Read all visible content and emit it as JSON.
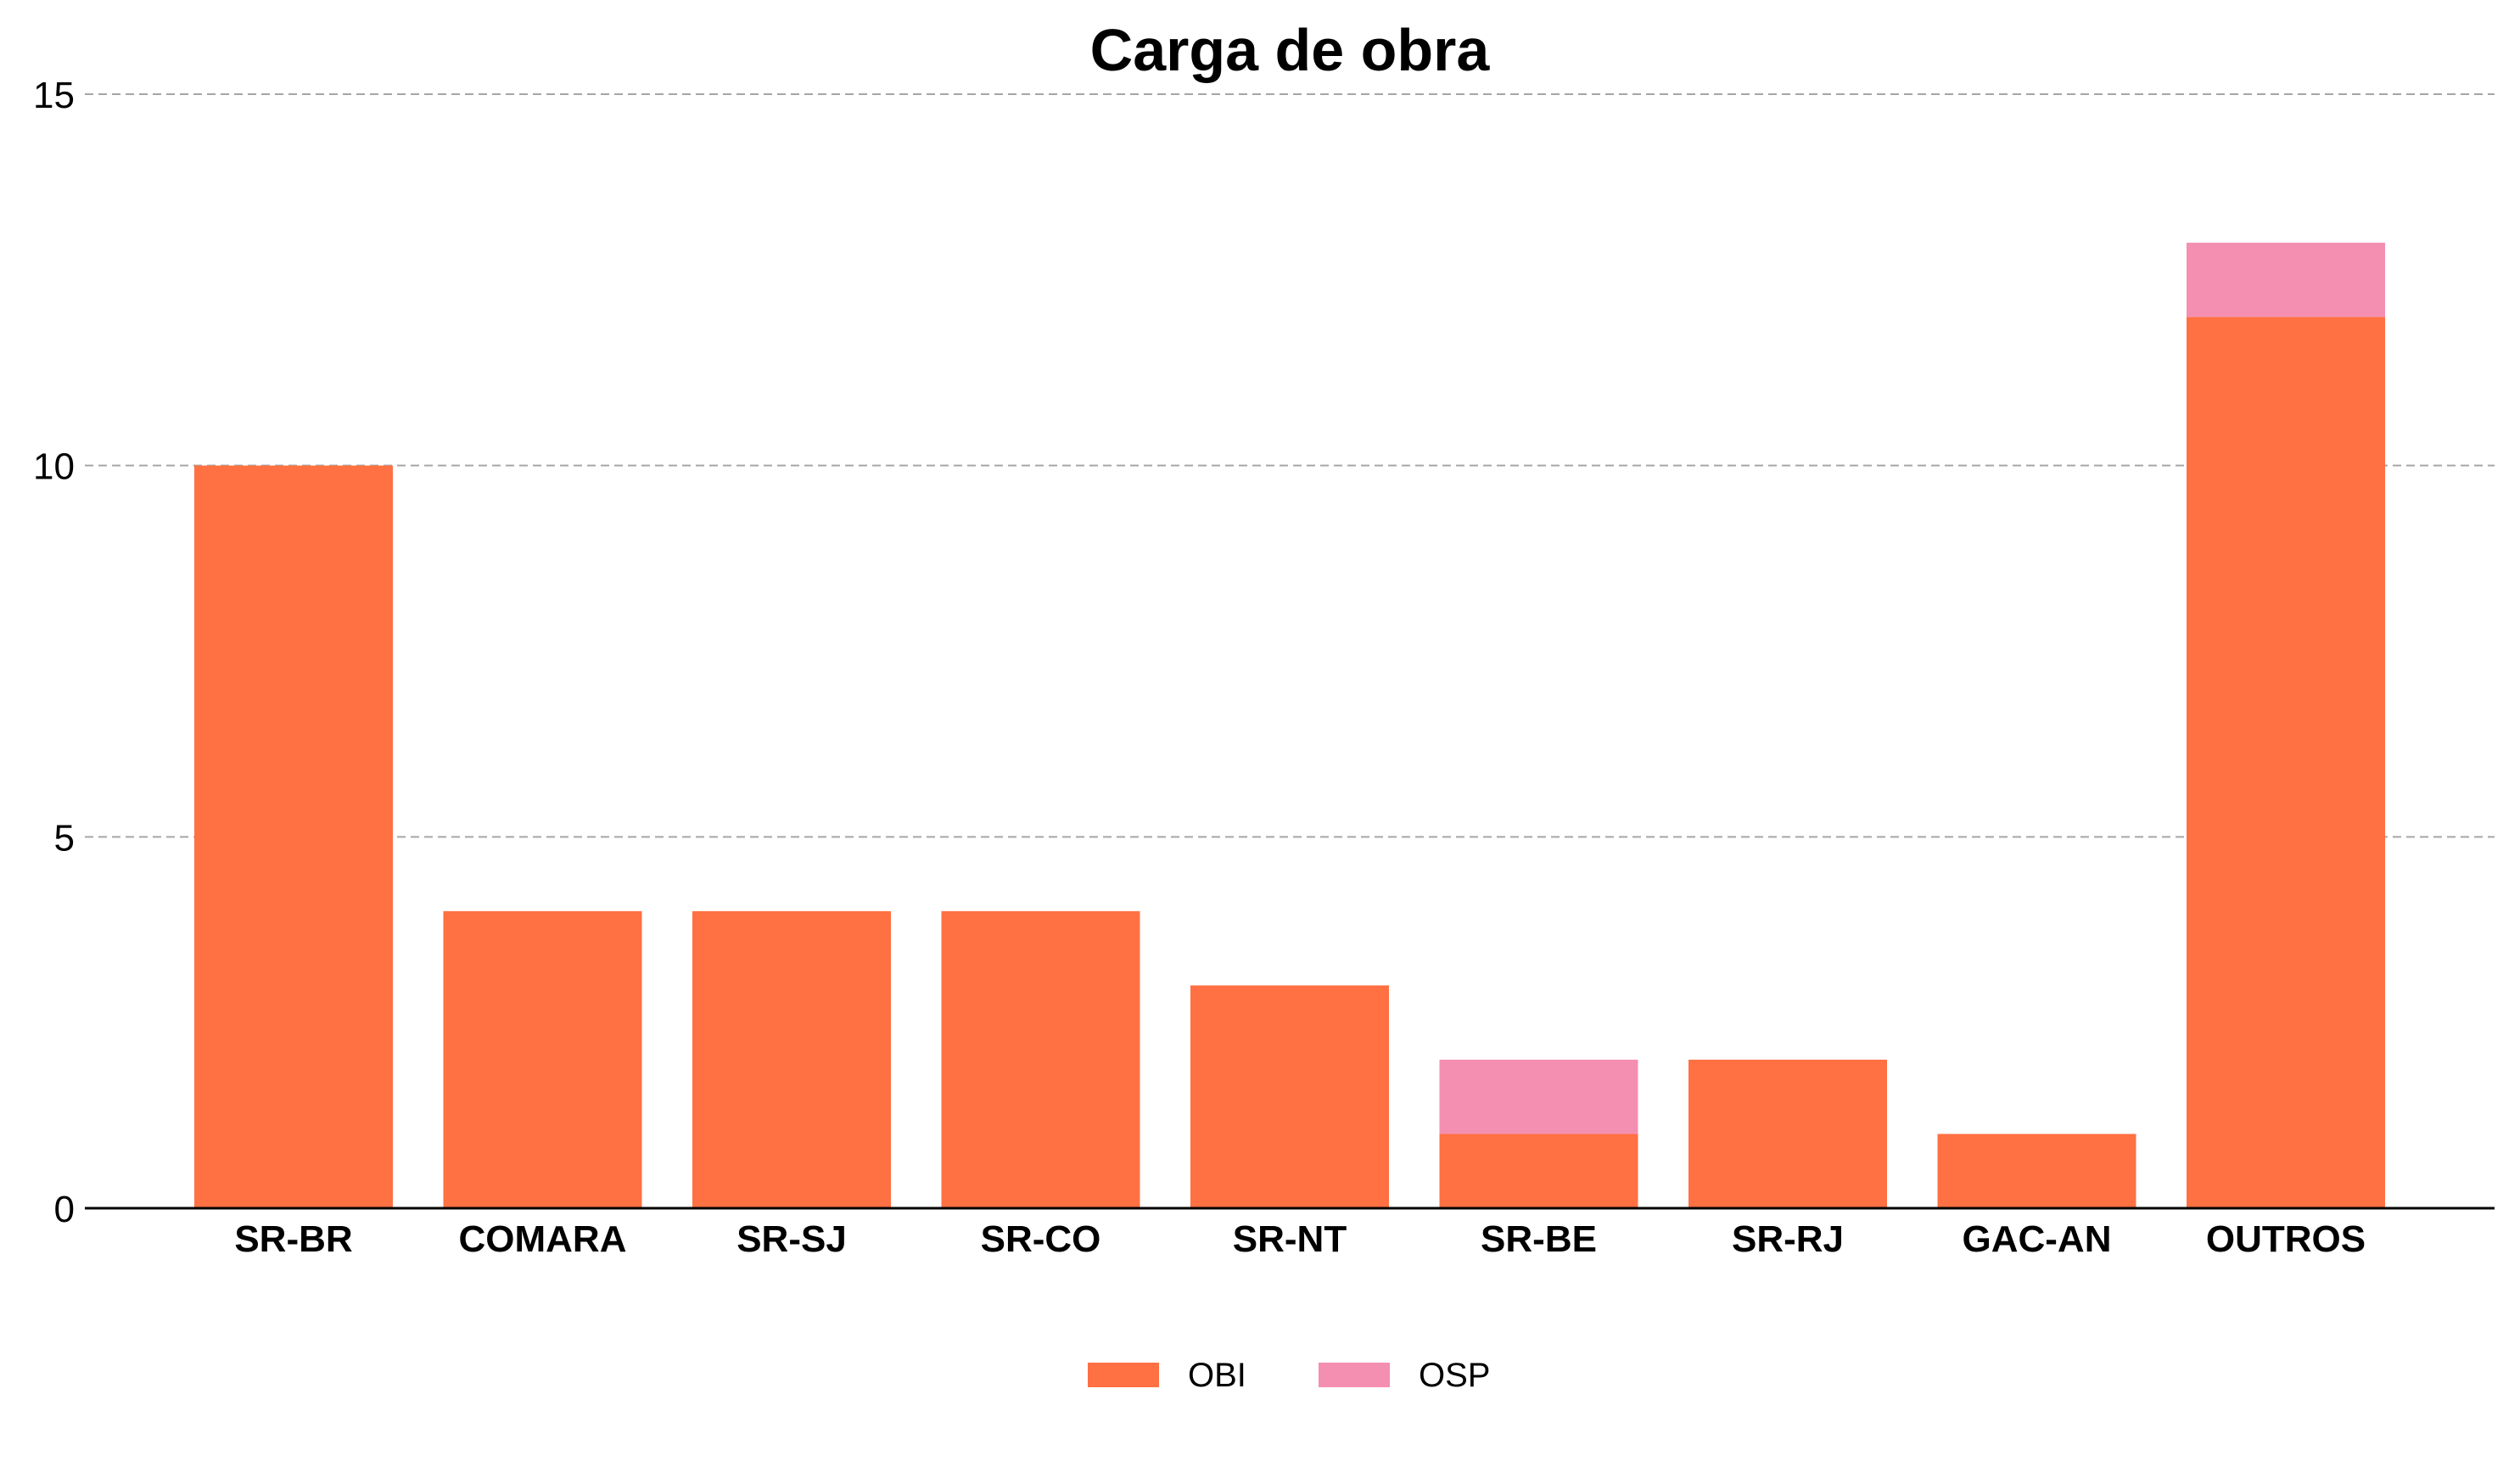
{
  "chart_data": {
    "type": "bar",
    "stacked": true,
    "title": "Carga de obra",
    "xlabel": "",
    "ylabel": "",
    "categories": [
      "SR-BR",
      "COMARA",
      "SR-SJ",
      "SR-CO",
      "SR-NT",
      "SR-BE",
      "SR-RJ",
      "GAC-AN",
      "OUTROS"
    ],
    "series": [
      {
        "name": "OBI",
        "color": "#ff7043",
        "values": [
          10,
          4,
          4,
          4,
          3,
          1,
          2,
          1,
          12
        ]
      },
      {
        "name": "OSP",
        "color": "#f48fb1",
        "values": [
          0,
          0,
          0,
          0,
          0,
          1,
          0,
          0,
          1
        ]
      }
    ],
    "ylim": [
      0,
      15
    ],
    "yticks": [
      0,
      5,
      10,
      15
    ],
    "grid": true,
    "legend_position": "bottom-center"
  }
}
